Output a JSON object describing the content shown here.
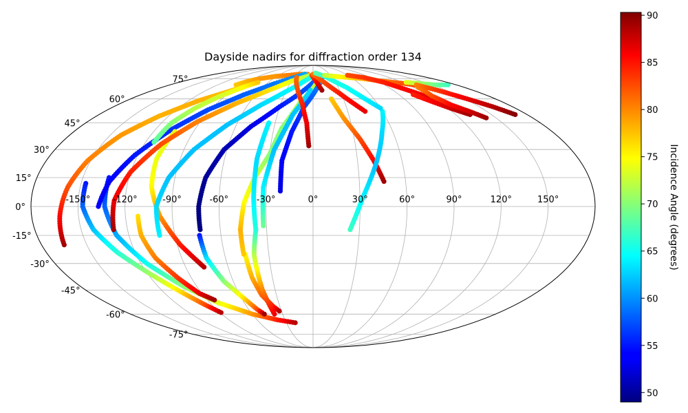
{
  "chart_data": {
    "type": "scatter",
    "projection": "mollweide",
    "title": "Dayside nadirs for diffraction order 134",
    "grid": true,
    "xticks": [
      -150,
      -120,
      -90,
      -60,
      -30,
      0,
      30,
      60,
      90,
      120,
      150
    ],
    "xtick_labels": [
      "-150°",
      "-120°",
      "-90°",
      "-60°",
      "-30°",
      "0°",
      "30°",
      "60°",
      "90°",
      "120°",
      "150°"
    ],
    "yticks": [
      -75,
      -60,
      -45,
      -30,
      -15,
      0,
      15,
      30,
      45,
      60,
      75
    ],
    "ytick_labels": [
      "-75°",
      "-60°",
      "-45°",
      "-30°",
      "-15°",
      "0°",
      "15°",
      "30°",
      "45°",
      "60°",
      "75°"
    ],
    "colorbar": {
      "label": "Incidence Angle (degrees)",
      "colormap": "jet",
      "range": [
        49,
        90.3
      ],
      "ticks": [
        50,
        55,
        60,
        65,
        70,
        75,
        80,
        85,
        90
      ],
      "tick_labels": [
        "50",
        "55",
        "60",
        "65",
        "70",
        "75",
        "80",
        "85",
        "90"
      ]
    },
    "series": [
      {
        "lon": [
          -165,
          -162,
          -158,
          -152,
          -142,
          -128,
          -110,
          -88
        ],
        "lat": [
          -20,
          -5,
          10,
          24,
          38,
          49,
          59,
          67
        ],
        "incidence": [
          89,
          85,
          82,
          80,
          79,
          78,
          78,
          77
        ]
      },
      {
        "lon": [
          -97,
          -90,
          -80,
          -62,
          -42,
          -25,
          -10
        ],
        "lat": [
          70,
          73,
          75,
          77,
          78,
          79,
          79
        ],
        "incidence": [
          77,
          78,
          79,
          79,
          80,
          80,
          80
        ]
      },
      {
        "lon": [
          -147,
          -147,
          -142,
          -132,
          -118,
          -106,
          -96,
          -89
        ],
        "lat": [
          12,
          0,
          -12,
          -24,
          -36,
          -46,
          -54,
          -59
        ],
        "incidence": [
          55,
          58,
          62,
          66,
          71,
          76,
          82,
          88
        ]
      },
      {
        "lon": [
          -133,
          -133,
          -128,
          -116,
          -100,
          -82,
          -60,
          -38,
          -20
        ],
        "lat": [
          15,
          0,
          -15,
          -30,
          -43,
          -53,
          -60,
          -64,
          -66
        ],
        "incidence": [
          55,
          58,
          61,
          65,
          70,
          74,
          79,
          84,
          88
        ]
      },
      {
        "lon": [
          -137,
          -132,
          -122,
          -108,
          -92,
          -72,
          -50,
          -30,
          -15
        ],
        "lat": [
          0,
          13,
          27,
          41,
          53,
          63,
          71,
          76,
          79
        ],
        "incidence": [
          54,
          54,
          55,
          56,
          57,
          58,
          59,
          60,
          61
        ]
      },
      {
        "lon": [
          -114,
          -112,
          -105,
          -95,
          -82,
          -74
        ],
        "lat": [
          34,
          45,
          54,
          62,
          69,
          72
        ],
        "incidence": [
          68,
          70,
          72,
          73,
          75,
          77
        ]
      },
      {
        "lon": [
          -112,
          -112,
          -108,
          -100,
          -92,
          -84
        ],
        "lat": [
          -5,
          -15,
          -27,
          -38,
          -47,
          -51
        ],
        "incidence": [
          76,
          78,
          80,
          83,
          86,
          89
        ]
      },
      {
        "lon": [
          -104,
          -106,
          -104,
          -98,
          -88,
          -77
        ],
        "lat": [
          40,
          25,
          10,
          -5,
          -20,
          -32
        ],
        "incidence": [
          74,
          74,
          75,
          79,
          84,
          88
        ]
      },
      {
        "lon": [
          -129,
          -127,
          -120,
          -108,
          -92,
          -72,
          -50,
          -30,
          -10,
          5
        ],
        "lat": [
          -12,
          3,
          18,
          33,
          46,
          57,
          66,
          73,
          77,
          79
        ],
        "incidence": [
          89,
          86,
          84,
          82,
          80,
          78,
          76,
          74,
          72,
          71
        ]
      },
      {
        "lon": [
          -100,
          -100,
          -94,
          -83,
          -67,
          -48,
          -30,
          -12,
          2
        ],
        "lat": [
          -15,
          0,
          15,
          30,
          44,
          56,
          65,
          73,
          78
        ],
        "incidence": [
          64,
          63,
          62,
          62,
          62,
          63,
          64,
          65,
          66
        ]
      },
      {
        "lon": [
          -73,
          -73,
          -70,
          -62,
          -48,
          -30,
          -12,
          2,
          12
        ],
        "lat": [
          -12,
          0,
          15,
          30,
          43,
          55,
          65,
          73,
          78
        ],
        "incidence": [
          49,
          49,
          50,
          51,
          53,
          55,
          57,
          58,
          59
        ]
      },
      {
        "lon": [
          -74,
          -73,
          -67,
          -58,
          -52,
          -48
        ],
        "lat": [
          -15,
          -27,
          -40,
          -50,
          -57,
          -60
        ],
        "incidence": [
          55,
          63,
          70,
          76,
          82,
          89
        ]
      },
      {
        "lon": [
          -46,
          -45,
          -42,
          -36,
          -32
        ],
        "lat": [
          -25,
          -38,
          -48,
          -55,
          -58
        ],
        "incidence": [
          75,
          78,
          81,
          84,
          88
        ]
      },
      {
        "lon": [
          -47,
          -47,
          -44,
          -38,
          -30
        ],
        "lat": [
          -25,
          -12,
          2,
          15,
          27
        ],
        "incidence": [
          77,
          78,
          75,
          73,
          70
        ]
      },
      {
        "lon": [
          -30,
          -24,
          -12,
          3,
          14
        ],
        "lat": [
          27,
          42,
          58,
          70,
          77
        ],
        "incidence": [
          70,
          70,
          71,
          72,
          73
        ]
      },
      {
        "lon": [
          -38,
          -40,
          -40,
          -37
        ],
        "lat": [
          -60,
          -45,
          -25,
          -12
        ],
        "incidence": [
          86,
          80,
          72,
          66
        ]
      },
      {
        "lon": [
          -37,
          -38,
          -38,
          -35
        ],
        "lat": [
          -12,
          5,
          25,
          45
        ],
        "incidence": [
          66,
          64,
          63,
          64
        ]
      },
      {
        "lon": [
          -32,
          -32,
          -27,
          -17,
          -3
        ],
        "lat": [
          -10,
          10,
          30,
          50,
          66
        ],
        "incidence": [
          69,
          64,
          62,
          62,
          63
        ]
      },
      {
        "lon": [
          -21,
          -21,
          -16,
          -8,
          5,
          15
        ],
        "lat": [
          8,
          24,
          40,
          55,
          68,
          76
        ],
        "incidence": [
          53,
          54,
          55,
          57,
          59,
          61
        ]
      },
      {
        "lon": [
          -3,
          -5,
          -10,
          -18,
          -26
        ],
        "lat": [
          32,
          45,
          57,
          67,
          76
        ],
        "incidence": [
          89,
          86,
          84,
          82,
          81
        ]
      },
      {
        "lon": [
          10,
          5,
          -2
        ],
        "lat": [
          66,
          72,
          78
        ],
        "incidence": [
          89,
          86,
          83
        ]
      },
      {
        "lon": [
          0,
          5,
          15,
          28,
          45
        ],
        "lat": [
          79,
          77,
          72,
          64,
          52
        ],
        "incidence": [
          80,
          81,
          82,
          84,
          86
        ]
      },
      {
        "lon": [
          18,
          25,
          34,
          41,
          46
        ],
        "lat": [
          60,
          48,
          36,
          24,
          13
        ],
        "incidence": [
          77,
          79,
          82,
          85,
          89
        ]
      },
      {
        "lon": [
          24,
          32,
          42,
          52,
          60
        ],
        "lat": [
          -12,
          5,
          22,
          40,
          52
        ],
        "incidence": [
          67,
          64,
          62,
          63,
          64
        ]
      },
      {
        "lon": [
          60,
          40,
          20,
          5
        ],
        "lat": [
          54,
          68,
          77,
          80
        ],
        "incidence": [
          63,
          65,
          66,
          68
        ]
      },
      {
        "lon": [
          20,
          35,
          55,
          75,
          95,
          120,
          140
        ],
        "lat": [
          78,
          77,
          76,
          75,
          73,
          71,
          68
        ],
        "incidence": [
          72,
          74,
          76,
          78,
          80,
          82,
          83
        ]
      },
      {
        "lon": [
          60,
          80,
          95,
          105,
          115,
          125
        ],
        "lat": [
          78,
          76,
          72,
          67,
          62,
          57
        ],
        "incidence": [
          82,
          83,
          84,
          85,
          86,
          88
        ]
      },
      {
        "lon": [
          105,
          112,
          122,
          132
        ],
        "lat": [
          63,
          59,
          54,
          50
        ],
        "incidence": [
          84,
          85,
          87,
          89
        ]
      },
      {
        "lon": [
          125,
          122,
          127,
          135,
          142
        ],
        "lat": [
          68,
          62,
          56,
          52,
          48
        ],
        "incidence": [
          80,
          82,
          85,
          87,
          89
        ]
      },
      {
        "lon": [
          125,
          140,
          155,
          170
        ],
        "lat": [
          72,
          71,
          70,
          70
        ],
        "incidence": [
          74,
          71,
          69,
          67
        ]
      },
      {
        "lon": [
          130,
          140,
          152,
          162,
          170
        ],
        "lat": [
          70,
          66,
          60,
          55,
          50
        ],
        "incidence": [
          80,
          83,
          86,
          88,
          90
        ]
      }
    ]
  }
}
